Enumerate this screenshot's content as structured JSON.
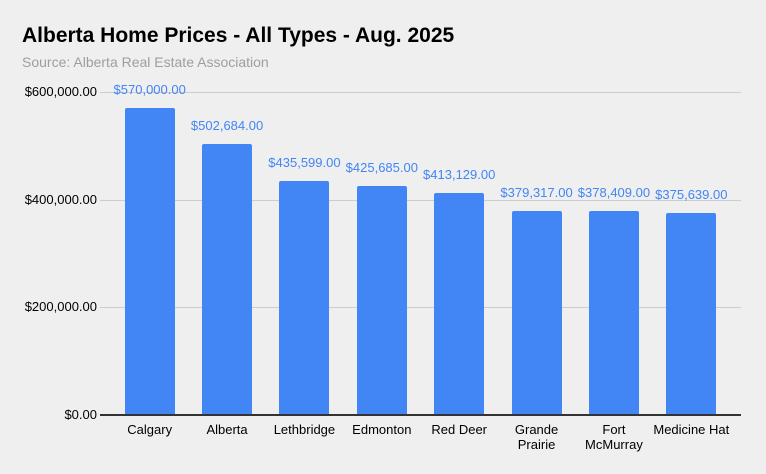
{
  "subtitle": "Source: Alberta Real Estate Association",
  "chart_data": {
    "type": "bar",
    "title": "Alberta Home Prices - All Types - Aug. 2025",
    "subtitle": "Source: Alberta Real Estate Association",
    "categories": [
      "Calgary",
      "Alberta",
      "Lethbridge",
      "Edmonton",
      "Red Deer",
      "Grande Prairie",
      "Fort McMurray",
      "Medicine Hat"
    ],
    "values": [
      570000,
      502684,
      435599,
      425685,
      413129,
      379317,
      378409,
      375639
    ],
    "value_labels": [
      "$570,000.00",
      "$502,684.00",
      "$435,599.00",
      "$425,685.00",
      "$413,129.00",
      "$379,317.00",
      "$378,409.00",
      "$375,639.00"
    ],
    "xlabel": "",
    "ylabel": "",
    "ylim": [
      0,
      600000
    ],
    "yticks": [
      {
        "value": 0,
        "label": "$0.00"
      },
      {
        "value": 200000,
        "label": "$200,000.00"
      },
      {
        "value": 400000,
        "label": "$400,000.00"
      },
      {
        "value": 600000,
        "label": "$600,000.00"
      }
    ],
    "grid": true,
    "legend": false,
    "colors": {
      "background": "#efefef",
      "bar": "#4285f4",
      "value_label": "#4285f4",
      "gridline": "#cccccc",
      "axis_line": "#333333",
      "title": "#000000",
      "subtitle": "#9e9e9e",
      "tick_label": "#000000"
    }
  }
}
